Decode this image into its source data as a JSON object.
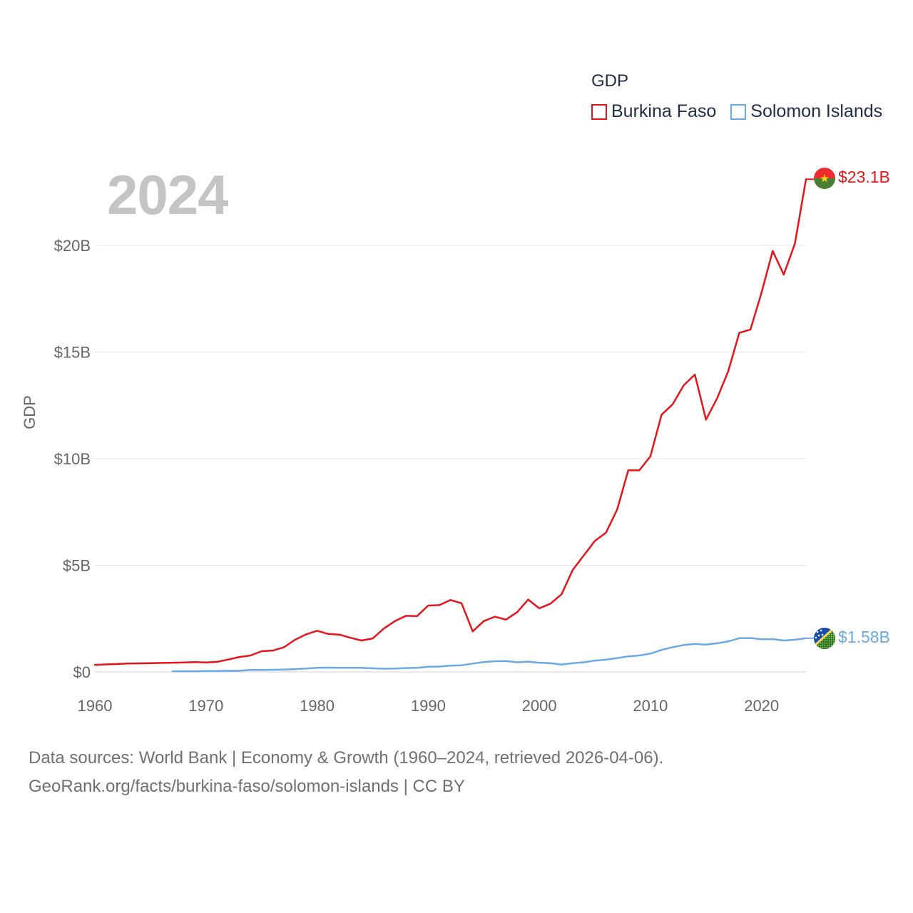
{
  "header": {
    "legend_title": "GDP",
    "year_label": "2024"
  },
  "legend": [
    {
      "name": "Burkina Faso",
      "color": "#e8141b"
    },
    {
      "name": "Solomon Islands",
      "color": "#69a9e6"
    }
  ],
  "end_labels": {
    "burkina_faso": "$23.1B",
    "solomon_islands": "$1.58B"
  },
  "footer": {
    "line1": "Data sources: World Bank | Economy & Growth (1960–2024, retrieved 2026-04-06).",
    "line2": "GeoRank.org/facts/burkina-faso/solomon-islands | CC BY"
  },
  "chart_data": {
    "type": "line",
    "title": "GDP",
    "xlabel": "",
    "ylabel": "GDP",
    "xlim": [
      1960,
      2024
    ],
    "ylim": [
      0,
      24
    ],
    "y_unit": "billion USD",
    "grid": true,
    "legend_position": "top-right",
    "x_ticks": [
      1960,
      1970,
      1980,
      1990,
      2000,
      2010,
      2020
    ],
    "y_ticks": [
      {
        "value": 0,
        "label": "$0"
      },
      {
        "value": 5,
        "label": "$5B"
      },
      {
        "value": 10,
        "label": "$10B"
      },
      {
        "value": 15,
        "label": "$15B"
      },
      {
        "value": 20,
        "label": "$20B"
      }
    ],
    "series": [
      {
        "name": "Burkina Faso",
        "color": "#e8141b",
        "x": [
          1960,
          1961,
          1962,
          1963,
          1964,
          1965,
          1966,
          1967,
          1968,
          1969,
          1970,
          1971,
          1972,
          1973,
          1974,
          1975,
          1976,
          1977,
          1978,
          1979,
          1980,
          1981,
          1982,
          1983,
          1984,
          1985,
          1986,
          1987,
          1988,
          1989,
          1990,
          1991,
          1992,
          1993,
          1994,
          1995,
          1996,
          1997,
          1998,
          1999,
          2000,
          2001,
          2002,
          2003,
          2004,
          2005,
          2006,
          2007,
          2008,
          2009,
          2010,
          2011,
          2012,
          2013,
          2014,
          2015,
          2016,
          2017,
          2018,
          2019,
          2020,
          2021,
          2022,
          2023,
          2024
        ],
        "values": [
          0.33,
          0.35,
          0.37,
          0.39,
          0.4,
          0.41,
          0.42,
          0.43,
          0.44,
          0.46,
          0.44,
          0.47,
          0.58,
          0.7,
          0.77,
          0.97,
          1.0,
          1.15,
          1.5,
          1.76,
          1.93,
          1.78,
          1.75,
          1.6,
          1.47,
          1.57,
          2.03,
          2.38,
          2.63,
          2.62,
          3.11,
          3.13,
          3.37,
          3.22,
          1.9,
          2.38,
          2.59,
          2.45,
          2.8,
          3.39,
          2.98,
          3.2,
          3.64,
          4.78,
          5.46,
          6.14,
          6.53,
          7.61,
          9.45,
          9.45,
          10.11,
          12.06,
          12.55,
          13.44,
          13.94,
          11.83,
          12.83,
          14.1,
          15.9,
          16.05,
          17.79,
          19.74,
          18.63,
          20.08,
          23.1
        ]
      },
      {
        "name": "Solomon Islands",
        "color": "#69a9e6",
        "x": [
          1967,
          1968,
          1969,
          1970,
          1971,
          1972,
          1973,
          1974,
          1975,
          1976,
          1977,
          1978,
          1979,
          1980,
          1981,
          1982,
          1983,
          1984,
          1985,
          1986,
          1987,
          1988,
          1989,
          1990,
          1991,
          1992,
          1993,
          1994,
          1995,
          1996,
          1997,
          1998,
          1999,
          2000,
          2001,
          2002,
          2003,
          2004,
          2005,
          2006,
          2007,
          2008,
          2009,
          2010,
          2011,
          2012,
          2013,
          2014,
          2015,
          2016,
          2017,
          2018,
          2019,
          2020,
          2021,
          2022,
          2023,
          2024
        ],
        "values": [
          0.03,
          0.03,
          0.03,
          0.04,
          0.04,
          0.05,
          0.06,
          0.09,
          0.09,
          0.1,
          0.11,
          0.13,
          0.16,
          0.19,
          0.2,
          0.19,
          0.19,
          0.19,
          0.17,
          0.15,
          0.16,
          0.18,
          0.19,
          0.24,
          0.25,
          0.29,
          0.31,
          0.39,
          0.46,
          0.5,
          0.51,
          0.45,
          0.48,
          0.43,
          0.41,
          0.34,
          0.41,
          0.45,
          0.53,
          0.58,
          0.65,
          0.73,
          0.77,
          0.86,
          1.03,
          1.16,
          1.26,
          1.31,
          1.28,
          1.34,
          1.43,
          1.58,
          1.59,
          1.53,
          1.54,
          1.47,
          1.51,
          1.58
        ]
      }
    ]
  }
}
